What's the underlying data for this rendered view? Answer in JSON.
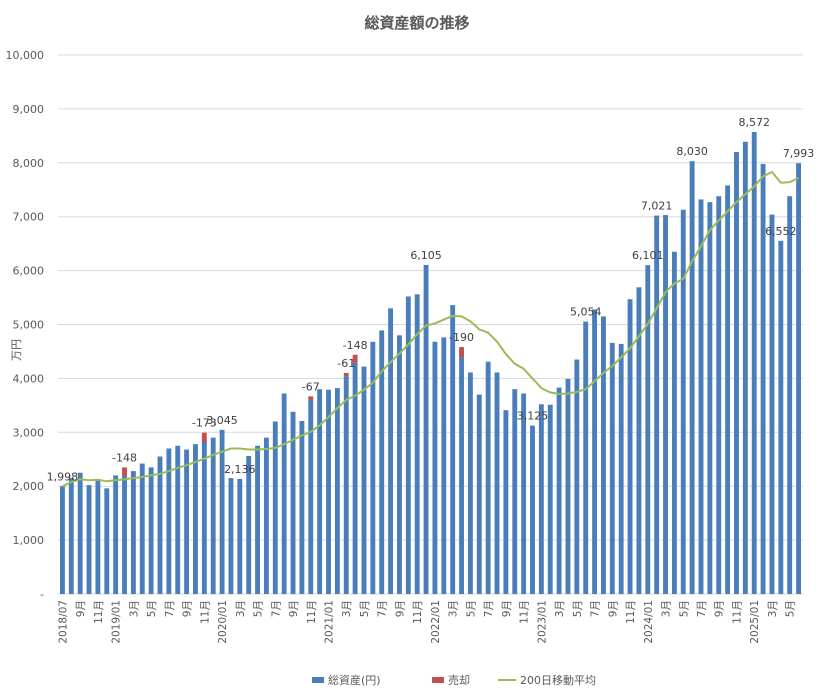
{
  "chart_data": {
    "type": "bar",
    "title": "総資産額の推移",
    "ylabel": "万円",
    "xlabel": "",
    "ylim": [
      0,
      10000
    ],
    "yticks": [
      0,
      1000,
      2000,
      3000,
      4000,
      5000,
      6000,
      7000,
      8000,
      9000,
      10000
    ],
    "ytick_labels": [
      "-",
      "1,000",
      "2,000",
      "3,000",
      "4,000",
      "5,000",
      "6,000",
      "7,000",
      "8,000",
      "9,000",
      "10,000"
    ],
    "grid": true,
    "legend_placement": "bottom",
    "colors": {
      "total": "#4a7ebb",
      "sell": "#c0504d",
      "ma": "#9bbb59",
      "grid": "#d9d9d9",
      "text": "#595959"
    },
    "x_tick_labels": [
      {
        "i": 0,
        "label": "2018/07"
      },
      {
        "i": 2,
        "label": "9月"
      },
      {
        "i": 4,
        "label": "11月"
      },
      {
        "i": 6,
        "label": "2019/01"
      },
      {
        "i": 8,
        "label": "3月"
      },
      {
        "i": 10,
        "label": "5月"
      },
      {
        "i": 12,
        "label": "7月"
      },
      {
        "i": 14,
        "label": "9月"
      },
      {
        "i": 16,
        "label": "11月"
      },
      {
        "i": 18,
        "label": "2020/01"
      },
      {
        "i": 20,
        "label": "3月"
      },
      {
        "i": 22,
        "label": "5月"
      },
      {
        "i": 24,
        "label": "7月"
      },
      {
        "i": 26,
        "label": "9月"
      },
      {
        "i": 28,
        "label": "11月"
      },
      {
        "i": 30,
        "label": "2021/01"
      },
      {
        "i": 32,
        "label": "3月"
      },
      {
        "i": 34,
        "label": "5月"
      },
      {
        "i": 36,
        "label": "7月"
      },
      {
        "i": 38,
        "label": "9月"
      },
      {
        "i": 40,
        "label": "11月"
      },
      {
        "i": 42,
        "label": "2022/01"
      },
      {
        "i": 44,
        "label": "3月"
      },
      {
        "i": 46,
        "label": "5月"
      },
      {
        "i": 48,
        "label": "7月"
      },
      {
        "i": 50,
        "label": "9月"
      },
      {
        "i": 52,
        "label": "11月"
      },
      {
        "i": 54,
        "label": "2023/01"
      },
      {
        "i": 56,
        "label": "3月"
      },
      {
        "i": 58,
        "label": "5月"
      },
      {
        "i": 60,
        "label": "7月"
      },
      {
        "i": 62,
        "label": "9月"
      },
      {
        "i": 64,
        "label": "11月"
      },
      {
        "i": 66,
        "label": "2024/01"
      },
      {
        "i": 68,
        "label": "3月"
      },
      {
        "i": 70,
        "label": "5月"
      },
      {
        "i": 72,
        "label": "7月"
      },
      {
        "i": 74,
        "label": "9月"
      },
      {
        "i": 76,
        "label": "11月"
      },
      {
        "i": 78,
        "label": "2025/01"
      },
      {
        "i": 80,
        "label": "3月"
      },
      {
        "i": 82,
        "label": "5月"
      }
    ],
    "series": [
      {
        "name": "総資産(円)",
        "kind": "bar",
        "values": [
          1998,
          2150,
          2250,
          2020,
          2130,
          1960,
          2200,
          2200,
          2280,
          2420,
          2350,
          2550,
          2700,
          2750,
          2680,
          2780,
          2820,
          2900,
          3045,
          2150,
          2136,
          2560,
          2750,
          2900,
          3200,
          3720,
          3380,
          3210,
          3600,
          3800,
          3790,
          3820,
          4040,
          4290,
          4220,
          4680,
          4890,
          5300,
          4800,
          5520,
          5560,
          6105,
          4680,
          4760,
          5360,
          4390,
          4110,
          3700,
          4310,
          4110,
          3410,
          3800,
          3720,
          3125,
          3520,
          3510,
          3830,
          3990,
          4350,
          5054,
          5280,
          5150,
          4660,
          4640,
          5470,
          5690,
          6101,
          7021,
          7030,
          6350,
          7130,
          8030,
          7320,
          7270,
          7380,
          7580,
          8200,
          8390,
          8572,
          7980,
          7040,
          6552,
          7380,
          7993
        ]
      },
      {
        "name": "売却",
        "kind": "stacked-bar",
        "points": [
          {
            "i": 7,
            "value": 148
          },
          {
            "i": 16,
            "value": 173
          },
          {
            "i": 28,
            "value": 67
          },
          {
            "i": 32,
            "value": 61
          },
          {
            "i": 33,
            "value": 148
          },
          {
            "i": 45,
            "value": 190
          }
        ]
      },
      {
        "name": "200日移動平均",
        "kind": "line",
        "values": [
          1998,
          2080,
          2130,
          2110,
          2120,
          2090,
          2110,
          2130,
          2150,
          2170,
          2200,
          2230,
          2280,
          2340,
          2390,
          2450,
          2510,
          2580,
          2640,
          2700,
          2700,
          2680,
          2680,
          2690,
          2710,
          2780,
          2860,
          2940,
          3010,
          3130,
          3280,
          3450,
          3600,
          3680,
          3790,
          3920,
          4130,
          4300,
          4460,
          4630,
          4820,
          4980,
          5020,
          5090,
          5160,
          5150,
          5060,
          4910,
          4850,
          4680,
          4450,
          4270,
          4180,
          4000,
          3820,
          3740,
          3710,
          3720,
          3750,
          3800,
          3950,
          4100,
          4230,
          4390,
          4560,
          4780,
          5010,
          5300,
          5600,
          5760,
          5850,
          6170,
          6450,
          6750,
          6930,
          7100,
          7270,
          7420,
          7560,
          7750,
          7830,
          7630,
          7640,
          7720
        ]
      }
    ],
    "annotations": [
      {
        "i": 0,
        "text": "1,998",
        "target": "total",
        "value": 1998
      },
      {
        "i": 7,
        "text": "-148",
        "target": "sell",
        "value": 148
      },
      {
        "i": 16,
        "text": "-173",
        "target": "sell",
        "value": 173
      },
      {
        "i": 18,
        "text": "3,045",
        "target": "total",
        "value": 3045
      },
      {
        "i": 20,
        "text": "2,136",
        "target": "total",
        "value": 2136
      },
      {
        "i": 28,
        "text": "-67",
        "target": "sell",
        "value": 67
      },
      {
        "i": 32,
        "text": "-61",
        "target": "sell",
        "value": 61
      },
      {
        "i": 33,
        "text": "-148",
        "target": "sell",
        "value": 148
      },
      {
        "i": 41,
        "text": "6,105",
        "target": "total",
        "value": 6105
      },
      {
        "i": 45,
        "text": "-190",
        "target": "sell",
        "value": 190
      },
      {
        "i": 53,
        "text": "3,125",
        "target": "total",
        "value": 3125
      },
      {
        "i": 59,
        "text": "5,054",
        "target": "total",
        "value": 5054
      },
      {
        "i": 66,
        "text": "6,101",
        "target": "total",
        "value": 6101
      },
      {
        "i": 67,
        "text": "7,021",
        "target": "total",
        "value": 7021
      },
      {
        "i": 71,
        "text": "8,030",
        "target": "total",
        "value": 8030
      },
      {
        "i": 78,
        "text": "8,572",
        "target": "total",
        "value": 8572
      },
      {
        "i": 81,
        "text": "6,552",
        "target": "total",
        "value": 6552
      },
      {
        "i": 83,
        "text": "7,993",
        "target": "total",
        "value": 7993
      }
    ]
  }
}
